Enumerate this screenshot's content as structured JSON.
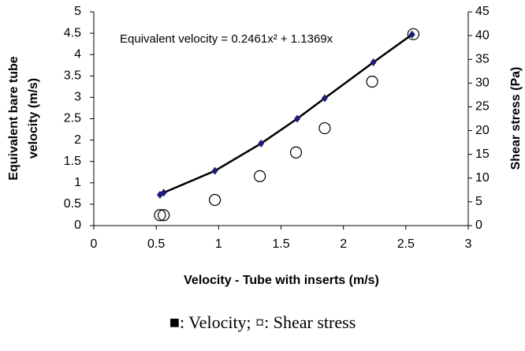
{
  "chart_data": {
    "type": "scatter",
    "annotation": "Equivalent velocity = 0.2461x² + 1.1369x",
    "xlabel": "Velocity - Tube with inserts (m/s)",
    "ylabel": [
      "Equivalent bare tube",
      "velocity (m/s)"
    ],
    "y2label": "Shear stress (Pa)",
    "caption": "■: Velocity; ¤: Shear stress",
    "xlim": [
      0,
      3
    ],
    "xticks": [
      0,
      0.5,
      1,
      1.5,
      2,
      2.5,
      3
    ],
    "ylim": [
      0,
      5
    ],
    "yticks": [
      0,
      0.5,
      1,
      1.5,
      2,
      2.5,
      3,
      3.5,
      4,
      4.5,
      5
    ],
    "y2lim": [
      0,
      45
    ],
    "y2ticks": [
      0,
      5,
      10,
      15,
      20,
      25,
      30,
      35,
      40,
      45
    ],
    "grid": false,
    "series": [
      {
        "name": "Velocity",
        "color": "#1c1c7a",
        "marker": "diamond",
        "trendline": true,
        "x": [
          0.53,
          0.56,
          0.97,
          1.34,
          1.63,
          1.85,
          2.24,
          2.55
        ],
        "values": [
          0.72,
          0.77,
          1.28,
          1.92,
          2.5,
          2.98,
          3.82,
          4.47
        ]
      },
      {
        "name": "Shear stress",
        "color": "#000000",
        "marker": "circle",
        "axis": "y2",
        "x": [
          0.53,
          0.56,
          0.97,
          1.33,
          1.62,
          1.85,
          2.23,
          2.56
        ],
        "values": [
          2.2,
          2.2,
          5.4,
          10.4,
          15.4,
          20.5,
          30.3,
          40.3
        ]
      }
    ]
  }
}
